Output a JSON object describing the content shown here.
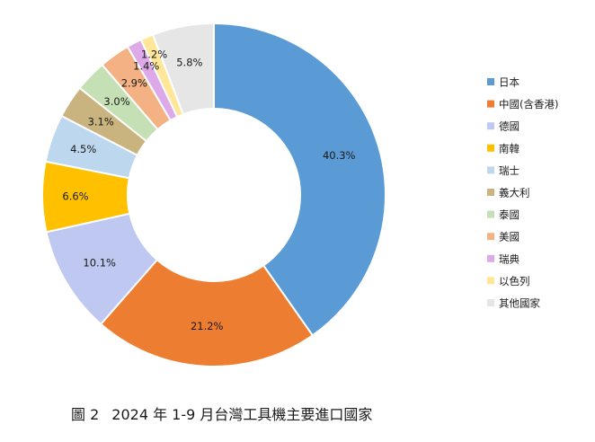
{
  "chart_data": {
    "type": "pie",
    "donut": true,
    "categories": [
      "日本",
      "中國(含香港)",
      "德國",
      "南韓",
      "瑞士",
      "義大利",
      "泰國",
      "美國",
      "瑞典",
      "以色列",
      "其他國家"
    ],
    "values": [
      40.3,
      21.2,
      10.1,
      6.6,
      4.5,
      3.1,
      3.0,
      2.9,
      1.4,
      1.2,
      5.8
    ],
    "data_labels": [
      "40.3%",
      "21.2%",
      "10.1%",
      "6.6%",
      "4.5%",
      "3.1%",
      "3.0%",
      "2.9%",
      "1.4%",
      "1.2%",
      "5.8%"
    ],
    "colors": [
      "#5B9BD5",
      "#ED7D31",
      "#BEC8F0",
      "#FFC000",
      "#BDD7EE",
      "#C9B47F",
      "#C5E0B4",
      "#F4B183",
      "#DDA9E8",
      "#FFE699",
      "#E7E6E6"
    ],
    "legend_position": "right"
  },
  "caption": {
    "figure_no": "圖 2",
    "text": "2024 年 1-9 月台灣工具機主要進口國家"
  }
}
